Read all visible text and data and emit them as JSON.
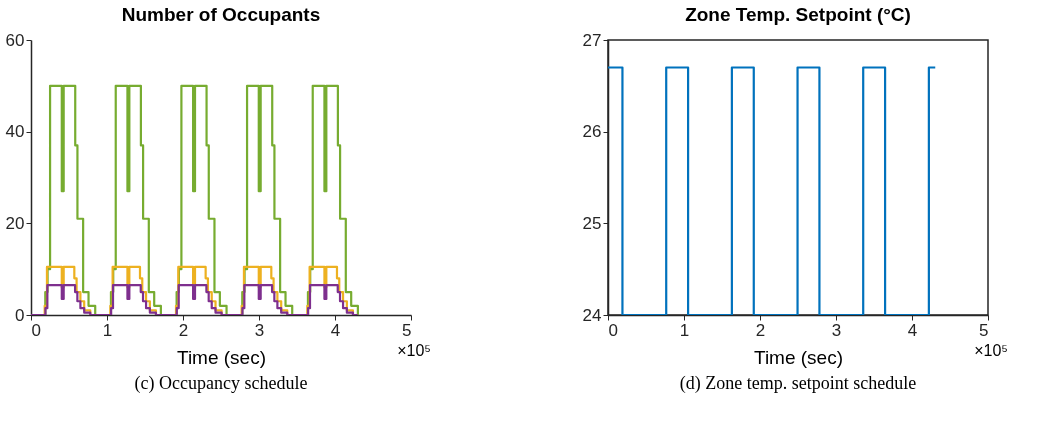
{
  "chart_data": [
    {
      "type": "step",
      "title": "Number of Occupants",
      "xlabel": "Time (sec)",
      "xlim": [
        0,
        5
      ],
      "xticks": [
        0,
        1,
        2,
        3,
        4,
        5
      ],
      "ylim": [
        0,
        60
      ],
      "yticks": [
        0,
        20,
        40,
        60
      ],
      "grid": false,
      "annotations": [
        "×10⁵",
        "(c) Occupancy schedule"
      ],
      "series": [
        {
          "color": "#77ac30",
          "x": [
            0,
            0.188,
            0.218,
            0.251,
            0.405,
            0.43,
            0.582,
            0.611,
            0.686,
            0.757,
            0.845,
            1.052,
            1.082,
            1.115,
            1.269,
            1.294,
            1.446,
            1.475,
            1.55,
            1.621,
            1.709,
            1.916,
            1.946,
            1.979,
            2.133,
            2.158,
            2.31,
            2.339,
            2.414,
            2.485,
            2.573,
            2.78,
            2.81,
            2.843,
            2.997,
            3.022,
            3.174,
            3.203,
            3.278,
            3.349,
            3.437,
            3.644,
            3.674,
            3.707,
            3.861,
            3.886,
            4.038,
            4.067,
            4.142,
            4.213,
            4.301
          ],
          "values": [
            0,
            5,
            10,
            50,
            27,
            50,
            37,
            21,
            5,
            2,
            0,
            5,
            10,
            50,
            27,
            50,
            37,
            21,
            5,
            2,
            0,
            5,
            10,
            50,
            27,
            50,
            37,
            21,
            5,
            2,
            0,
            5,
            10,
            50,
            27,
            50,
            37,
            21,
            5,
            2,
            0,
            5,
            10,
            50,
            27,
            50,
            37,
            21,
            5,
            2,
            0
          ]
        },
        {
          "color": "#edb120",
          "x": [
            0,
            0.18,
            0.21,
            0.405,
            0.43,
            0.57,
            0.6,
            0.65,
            0.7,
            0.78,
            1.044,
            1.074,
            1.269,
            1.294,
            1.434,
            1.464,
            1.514,
            1.564,
            1.644,
            1.908,
            1.938,
            2.133,
            2.158,
            2.298,
            2.328,
            2.378,
            2.428,
            2.508,
            2.772,
            2.802,
            2.997,
            3.022,
            3.162,
            3.192,
            3.242,
            3.292,
            3.372,
            3.636,
            3.666,
            3.861,
            3.886,
            4.026,
            4.056,
            4.106,
            4.156,
            4.236,
            4.301
          ],
          "values": [
            0,
            2,
            10.5,
            6,
            10.5,
            8,
            5,
            3,
            1,
            0,
            2,
            10.5,
            6,
            10.5,
            8,
            5,
            3,
            1,
            0,
            2,
            10.5,
            6,
            10.5,
            8,
            5,
            3,
            1,
            0,
            2,
            10.5,
            6,
            10.5,
            8,
            5,
            3,
            1,
            0,
            2,
            10.5,
            6,
            10.5,
            8,
            5,
            3,
            1,
            0,
            0
          ]
        },
        {
          "color": "#7e2f8e",
          "x": [
            0,
            0.19,
            0.215,
            0.405,
            0.43,
            0.58,
            0.61,
            0.65,
            0.7,
            0.78,
            1.054,
            1.079,
            1.269,
            1.294,
            1.444,
            1.474,
            1.514,
            1.564,
            1.644,
            1.918,
            1.943,
            2.133,
            2.158,
            2.308,
            2.338,
            2.378,
            2.428,
            2.508,
            2.782,
            2.807,
            2.997,
            3.022,
            3.172,
            3.202,
            3.242,
            3.292,
            3.372,
            3.646,
            3.671,
            3.861,
            3.886,
            4.036,
            4.066,
            4.106,
            4.156,
            4.236,
            4.301
          ],
          "values": [
            0,
            1.5,
            6.5,
            3.5,
            6.5,
            5,
            3,
            1.5,
            0.5,
            0,
            1.5,
            6.5,
            3.5,
            6.5,
            5,
            3,
            1.5,
            0.5,
            0,
            1.5,
            6.5,
            3.5,
            6.5,
            5,
            3,
            1.5,
            0.5,
            0,
            1.5,
            6.5,
            3.5,
            6.5,
            5,
            3,
            1.5,
            0.5,
            0,
            1.5,
            6.5,
            3.5,
            6.5,
            5,
            3,
            1.5,
            0.5,
            0,
            0
          ]
        }
      ]
    },
    {
      "type": "step",
      "title": "Zone Temp. Setpoint (°C)",
      "xlabel": "Time (sec)",
      "xlim": [
        0,
        5
      ],
      "xticks": [
        0,
        1,
        2,
        3,
        4,
        5
      ],
      "ylim": [
        24,
        27
      ],
      "yticks": [
        24,
        25,
        26,
        27
      ],
      "grid": false,
      "annotations": [
        "×10⁵",
        "(d) Zone temp. setpoint schedule"
      ],
      "series": [
        {
          "color": "#0072bd",
          "x": [
            0,
            0.19,
            0.766,
            1.054,
            1.63,
            1.918,
            2.494,
            2.782,
            3.358,
            3.646,
            4.222,
            4.306
          ],
          "values": [
            26.7,
            24,
            26.7,
            24,
            26.7,
            24,
            26.7,
            24,
            26.7,
            24,
            26.7,
            26.7
          ]
        }
      ]
    }
  ]
}
